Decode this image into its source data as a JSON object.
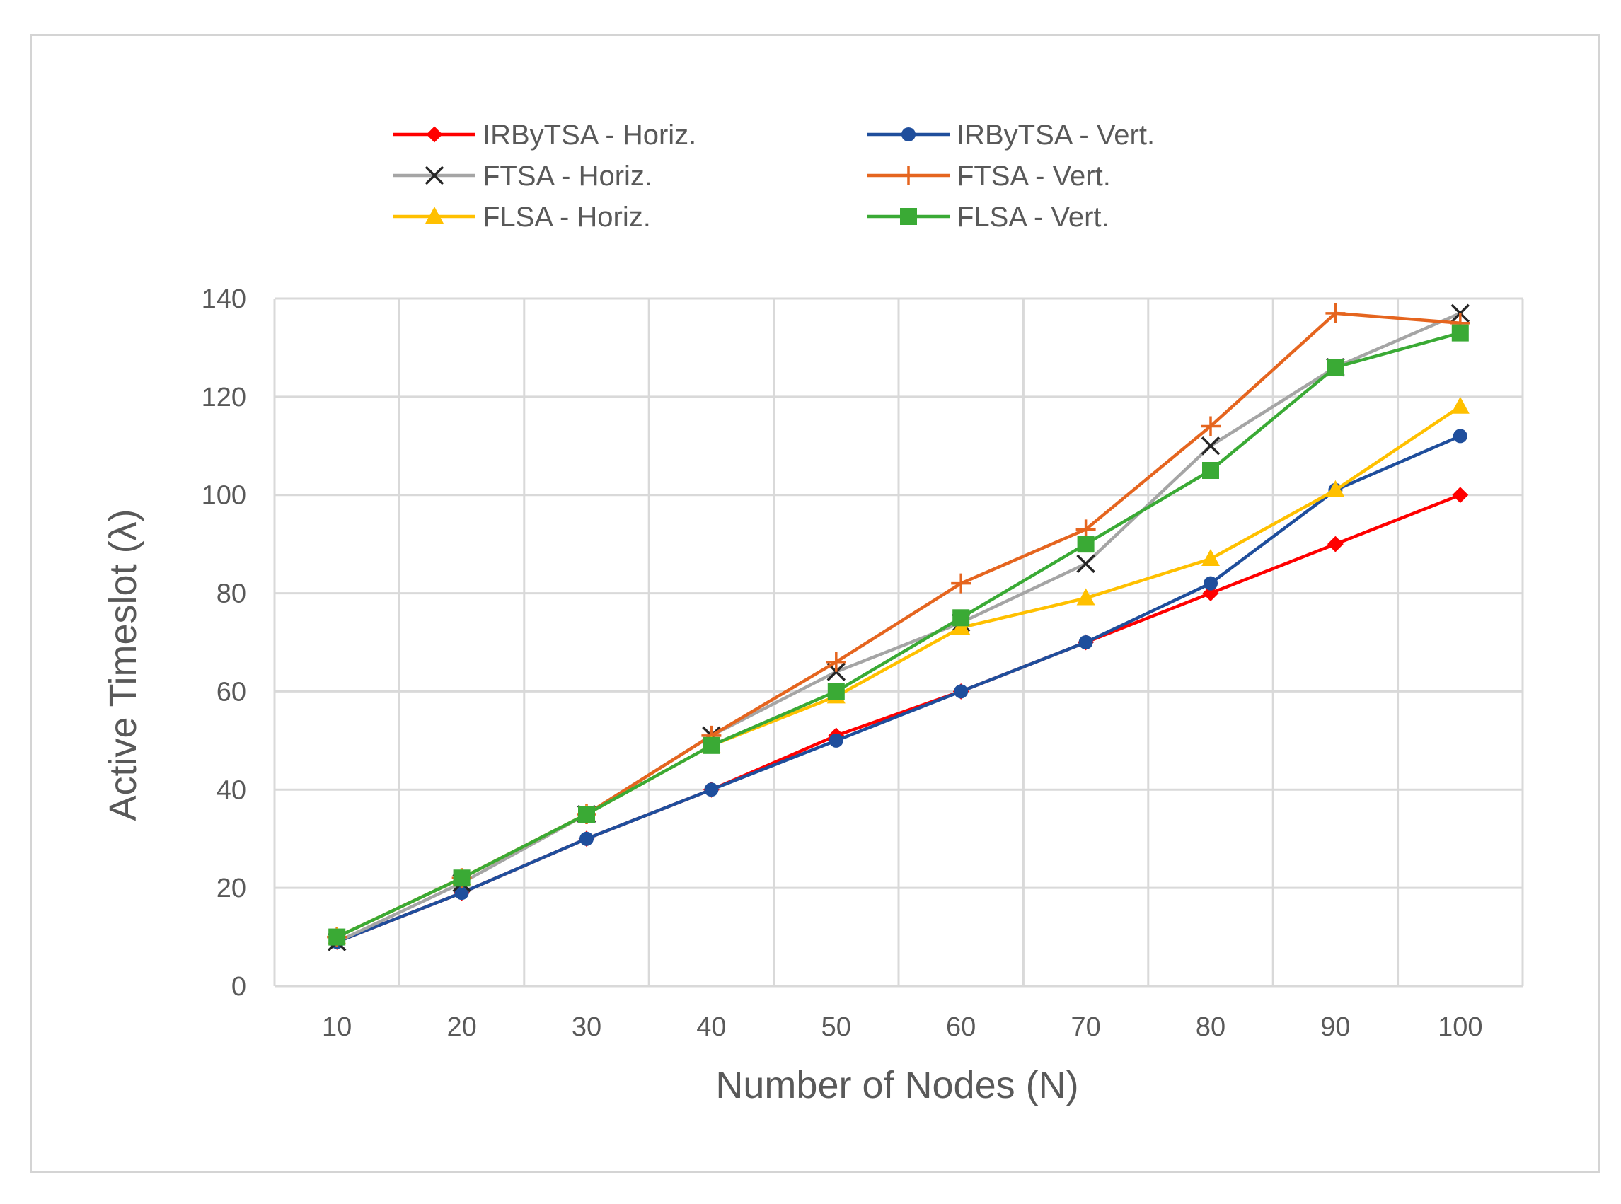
{
  "chart_data": {
    "type": "line",
    "title": "",
    "xlabel": "Number of Nodes (N)",
    "ylabel": "Active Timeslot (λ)",
    "categories": [
      "10",
      "20",
      "30",
      "40",
      "50",
      "60",
      "70",
      "80",
      "90",
      "100"
    ],
    "ylim": [
      0,
      140
    ],
    "yticks": [
      "0",
      "20",
      "40",
      "60",
      "80",
      "100",
      "120",
      "140"
    ],
    "grid": true,
    "legend_position": "top",
    "series": [
      {
        "name": "IRByTSA - Horiz.",
        "color": "#ff0000",
        "marker": "diamond",
        "values": [
          9,
          19,
          30,
          40,
          51,
          60,
          70,
          80,
          90,
          100
        ]
      },
      {
        "name": "IRByTSA - Vert.",
        "color": "#1f4e9c",
        "marker": "circle",
        "values": [
          9,
          19,
          30,
          40,
          50,
          60,
          70,
          82,
          101,
          112
        ]
      },
      {
        "name": "FTSA - Horiz.",
        "color": "#a5a5a5",
        "marker": "x",
        "values": [
          9,
          21,
          35,
          51,
          64,
          74,
          86,
          110,
          126,
          137
        ]
      },
      {
        "name": "FTSA - Vert.",
        "color": "#e5651f",
        "marker": "plus",
        "values": [
          10,
          22,
          35,
          51,
          66,
          82,
          93,
          114,
          137,
          135
        ]
      },
      {
        "name": "FLSA - Horiz.",
        "color": "#ffc000",
        "marker": "triangle",
        "values": [
          10,
          22,
          35,
          49,
          59,
          73,
          79,
          87,
          101,
          118
        ]
      },
      {
        "name": "FLSA - Vert.",
        "color": "#3aaa35",
        "marker": "square",
        "values": [
          10,
          22,
          35,
          49,
          60,
          75,
          90,
          105,
          126,
          133
        ]
      }
    ]
  }
}
